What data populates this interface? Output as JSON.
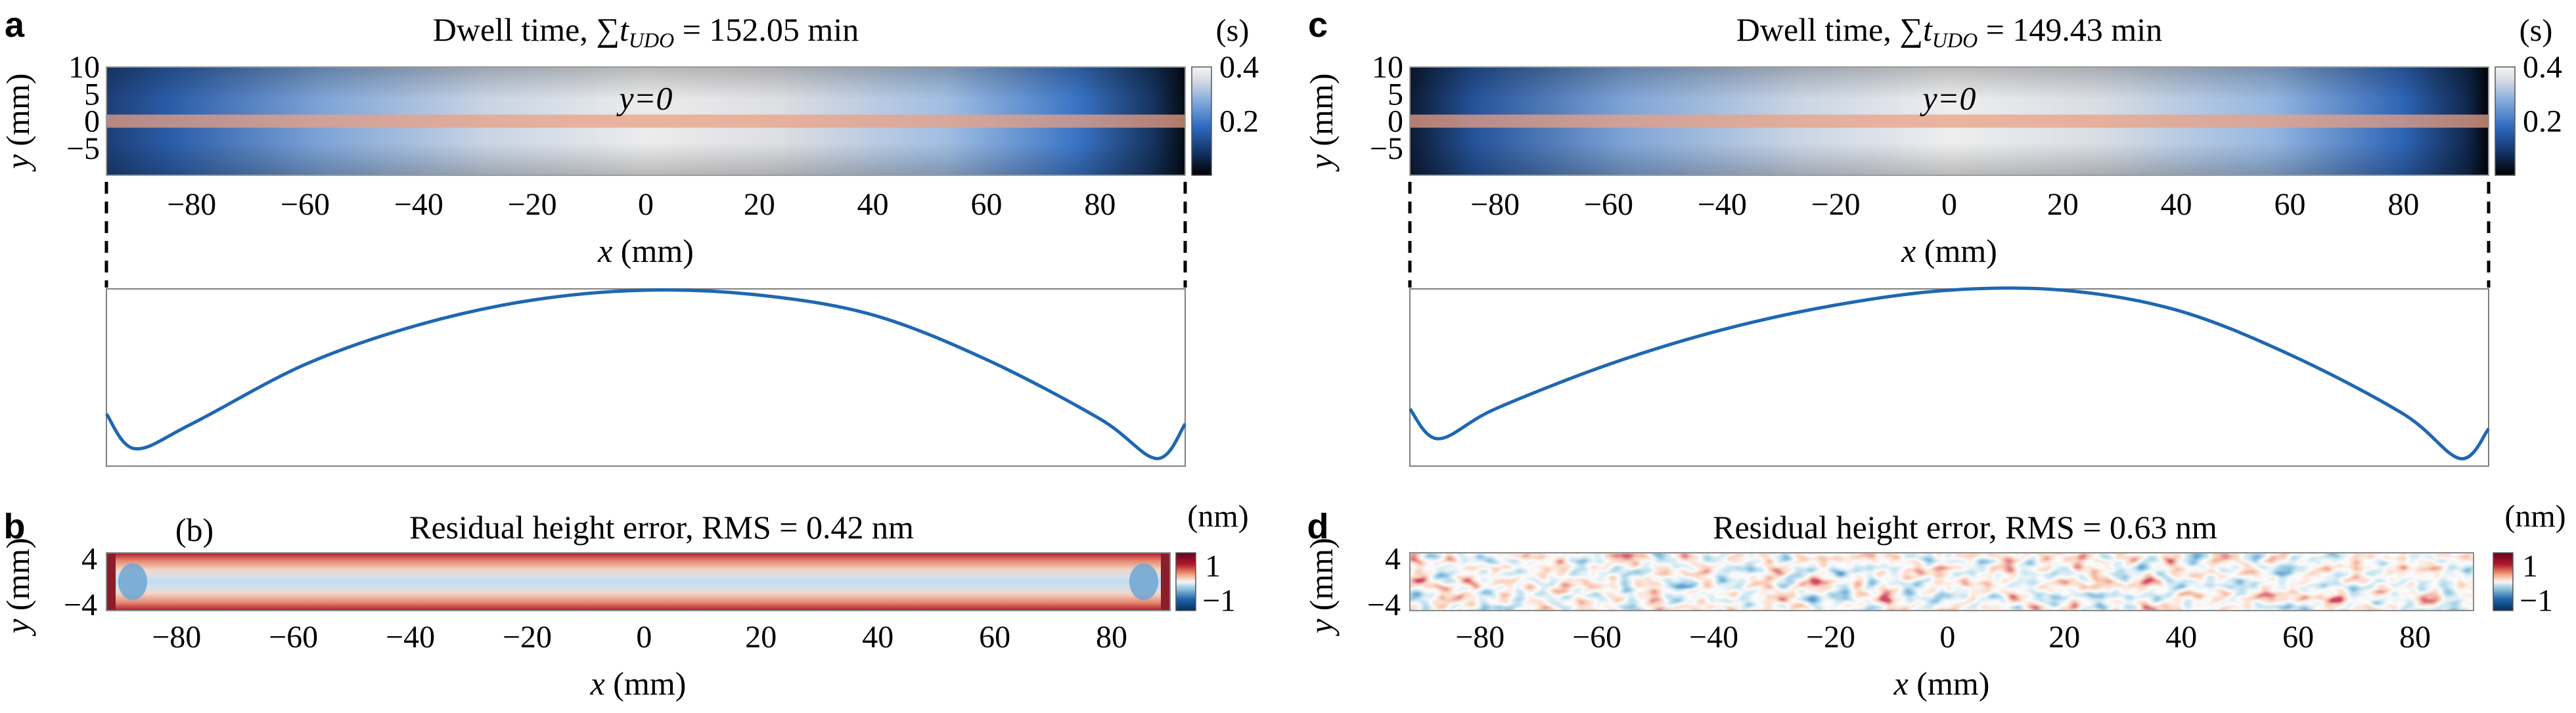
{
  "colors": {
    "profile_line": "#1f67b1",
    "y0_band": "#eaa084",
    "dwell_colormap": [
      "#000000",
      "#14305f",
      "#2f6bc1",
      "#8aaedc",
      "#d8dde4",
      "#f4f4f4"
    ],
    "residual_colormap": [
      "#053061",
      "#2166ac",
      "#92c5de",
      "#f7f7f7",
      "#f4a582",
      "#b2182b",
      "#67001f"
    ],
    "frame": "#808080"
  },
  "panels": [
    {
      "letter": "a",
      "title_pre": "Dwell time, ∑",
      "title_t": "t",
      "title_sub": "UDO",
      "title_post": " = 152.05 min",
      "unit": "(s)",
      "y_label_var": "y",
      "y_label_unit": " (mm)",
      "x_label_var": "x",
      "x_label_unit": " (mm)",
      "annotation_var": "y",
      "annotation_rest": "=0",
      "y_ticks": [
        "10",
        "5",
        "0",
        "−5"
      ],
      "x_ticks": [
        "−80",
        "−60",
        "−40",
        "−20",
        "0",
        "20",
        "40",
        "60",
        "80"
      ],
      "colorbar_ticks": [
        "0.4",
        "0.2"
      ]
    },
    {
      "letter": "c",
      "title_pre": "Dwell time, ∑",
      "title_t": "t",
      "title_sub": "UDO",
      "title_post": " = 149.43 min",
      "unit": "(s)",
      "y_label_var": "y",
      "y_label_unit": " (mm)",
      "x_label_var": "x",
      "x_label_unit": " (mm)",
      "annotation_var": "y",
      "annotation_rest": "=0",
      "y_ticks": [
        "10",
        "5",
        "0",
        "−5"
      ],
      "x_ticks": [
        "−80",
        "−60",
        "−40",
        "−20",
        "0",
        "20",
        "40",
        "60",
        "80"
      ],
      "colorbar_ticks": [
        "0.4",
        "0.2"
      ]
    },
    {
      "letter": "b",
      "inset_label": "(b)",
      "title": "Residual height error, RMS = 0.42 nm",
      "unit": "(nm)",
      "y_label_var": "y",
      "y_label_unit": " (mm)",
      "x_label_var": "x",
      "x_label_unit": " (mm)",
      "y_ticks": [
        "4",
        "−4"
      ],
      "x_ticks": [
        "−80",
        "−60",
        "−40",
        "−20",
        "0",
        "20",
        "40",
        "60",
        "80"
      ],
      "colorbar_ticks": [
        "1",
        "−1"
      ]
    },
    {
      "letter": "d",
      "title": "Residual height error, RMS = 0.63 nm",
      "unit": "(nm)",
      "y_label_var": "y",
      "y_label_unit": " (mm)",
      "x_label_var": "x",
      "x_label_unit": " (mm)",
      "y_ticks": [
        "4",
        "−4"
      ],
      "x_ticks": [
        "−80",
        "−60",
        "−40",
        "−20",
        "0",
        "20",
        "40",
        "60",
        "80"
      ],
      "colorbar_ticks": [
        "1",
        "−1"
      ]
    }
  ],
  "chart_data": [
    {
      "panel": "a",
      "type": "heatmap",
      "title": "Dwell time, ∑tUDO = 152.05 min",
      "xlabel": "x (mm)",
      "ylabel": "y (mm)",
      "xlim": [
        -95,
        95
      ],
      "ylim": [
        -10,
        10
      ],
      "colorbar_label": "(s)",
      "clim": [
        0,
        0.4
      ],
      "annotation": "y=0",
      "profile_x": [
        -95,
        -90,
        -80,
        -60,
        -40,
        -20,
        0,
        20,
        40,
        60,
        80,
        90,
        95
      ],
      "profile_dwell": [
        0.1,
        0.03,
        0.08,
        0.2,
        0.28,
        0.33,
        0.35,
        0.34,
        0.3,
        0.21,
        0.09,
        0.01,
        0.08
      ]
    },
    {
      "panel": "c",
      "type": "heatmap",
      "title": "Dwell time, ∑tUDO = 149.43 min",
      "xlabel": "x (mm)",
      "ylabel": "y (mm)",
      "xlim": [
        -95,
        95
      ],
      "ylim": [
        -10,
        10
      ],
      "colorbar_label": "(s)",
      "clim": [
        0,
        0.4
      ],
      "annotation": "y=0",
      "profile_x": [
        -95,
        -90,
        -80,
        -60,
        -40,
        -20,
        0,
        20,
        40,
        60,
        80,
        90,
        95
      ],
      "profile_dwell": [
        0.11,
        0.05,
        0.11,
        0.2,
        0.27,
        0.32,
        0.35,
        0.35,
        0.31,
        0.22,
        0.1,
        0.01,
        0.07
      ]
    },
    {
      "panel": "b",
      "type": "heatmap",
      "title": "Residual height error, RMS = 0.42 nm",
      "xlabel": "x (mm)",
      "ylabel": "y (mm)",
      "xlim": [
        -92,
        90
      ],
      "ylim": [
        -5,
        5
      ],
      "colorbar_label": "(nm)",
      "clim": [
        -1,
        1
      ],
      "pattern": "edge-dominant"
    },
    {
      "panel": "d",
      "type": "heatmap",
      "title": "Residual height error, RMS = 0.63 nm",
      "xlabel": "x (mm)",
      "ylabel": "y (mm)",
      "xlim": [
        -92,
        90
      ],
      "ylim": [
        -5,
        5
      ],
      "colorbar_label": "(nm)",
      "clim": [
        -1,
        1
      ],
      "pattern": "random-speckle"
    }
  ]
}
